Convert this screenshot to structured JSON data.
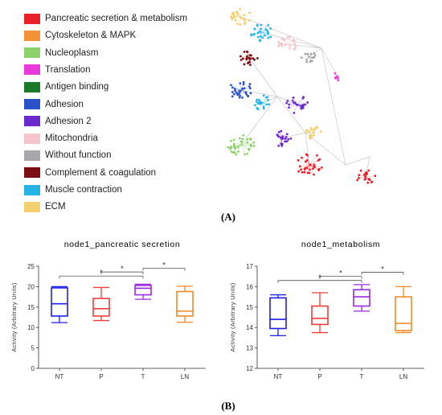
{
  "legend": [
    {
      "label": "Pancreatic secretion & metabolism",
      "color": "#e8202a"
    },
    {
      "label": "Cytoskeleton & MAPK",
      "color": "#f4923a"
    },
    {
      "label": "Nucleoplasm",
      "color": "#8ed06a"
    },
    {
      "label": "Translation",
      "color": "#e83ad8"
    },
    {
      "label": "Antigen binding",
      "color": "#1a7a2a"
    },
    {
      "label": "Adhesion",
      "color": "#2a52c8"
    },
    {
      "label": "Adhesion 2",
      "color": "#6a2ad0"
    },
    {
      "label": "Mitochondria",
      "color": "#f6c4cc"
    },
    {
      "label": "Without function",
      "color": "#a8a8aa"
    },
    {
      "label": "Complement & coagulation",
      "color": "#7a0e12"
    },
    {
      "label": "Muscle contraction",
      "color": "#26b4e6"
    },
    {
      "label": "ECM",
      "color": "#f2d070"
    }
  ],
  "panel_a_label": "(A)",
  "panel_b_label": "(B)",
  "chart_data": [
    {
      "type": "box",
      "title": "node1_pancreatic secretion",
      "ylabel": "Activity (Arbitrary Units)",
      "ylim": [
        0,
        25
      ],
      "yticks": [
        0,
        5,
        10,
        15,
        20,
        25
      ],
      "categories": [
        "NT",
        "P",
        "T",
        "LN"
      ],
      "colors": [
        "#1f1fe8",
        "#f03c3c",
        "#9a2ae0",
        "#f08a26"
      ],
      "boxes": [
        {
          "min": 11.2,
          "q1": 12.8,
          "median": 15.8,
          "q3": 19.7,
          "max": 20.0
        },
        {
          "min": 11.7,
          "q1": 12.8,
          "median": 14.6,
          "q3": 17.1,
          "max": 19.8
        },
        {
          "min": 16.9,
          "q1": 18.0,
          "median": 19.6,
          "q3": 20.3,
          "max": 20.6
        },
        {
          "min": 11.3,
          "q1": 12.8,
          "median": 14.0,
          "q3": 18.8,
          "max": 20.1
        }
      ],
      "significance": [
        {
          "from": 0,
          "to": 2,
          "y": 22.6,
          "label": "*"
        },
        {
          "from": 1,
          "to": 2,
          "y": 23.6,
          "label": "*"
        },
        {
          "from": 2,
          "to": 3,
          "y": 24.5,
          "label": "*"
        }
      ]
    },
    {
      "type": "box",
      "title": "node1_metabolism",
      "ylabel": "Activity (Arbitrary Units)",
      "ylim": [
        12,
        17
      ],
      "yticks": [
        12,
        13,
        14,
        15,
        16,
        17
      ],
      "categories": [
        "NT",
        "P",
        "T",
        "LN"
      ],
      "colors": [
        "#1f1fe8",
        "#f03c3c",
        "#9a2ae0",
        "#f08a26"
      ],
      "boxes": [
        {
          "min": 13.6,
          "q1": 13.95,
          "median": 14.4,
          "q3": 15.45,
          "max": 15.6
        },
        {
          "min": 13.75,
          "q1": 14.15,
          "median": 14.45,
          "q3": 15.05,
          "max": 15.7
        },
        {
          "min": 14.8,
          "q1": 15.05,
          "median": 15.5,
          "q3": 15.85,
          "max": 16.1
        },
        {
          "min": 13.75,
          "q1": 13.85,
          "median": 14.2,
          "q3": 15.5,
          "max": 16.0
        }
      ],
      "significance": [
        {
          "from": 0,
          "to": 2,
          "y": 16.3,
          "label": "*"
        },
        {
          "from": 1,
          "to": 2,
          "y": 16.5,
          "label": "*"
        },
        {
          "from": 2,
          "to": 3,
          "y": 16.7,
          "label": "*"
        }
      ]
    }
  ]
}
